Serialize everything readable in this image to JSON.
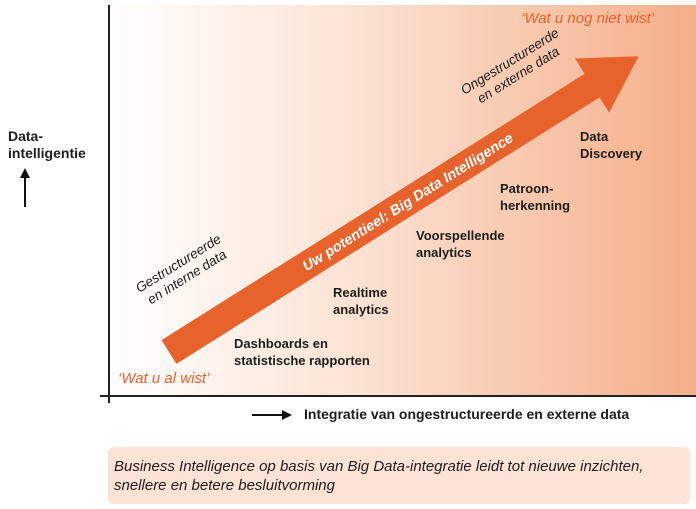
{
  "y_axis": {
    "label_line1": "Data-",
    "label_line2": "intelligentie",
    "arrow_icon": "arrow-up"
  },
  "x_axis": {
    "label": "Integratie van ongestructureerde en externe data",
    "arrow_icon": "arrow-right"
  },
  "corner_labels": {
    "bottom_left": "‘Wat u al wist’",
    "top_right": "‘Wat u nog niet wist’"
  },
  "arrow": {
    "label": "Uw potentieel: Big Data Intelligence",
    "color": "#e8622c"
  },
  "data_type_labels": {
    "start": {
      "line1": "Gestructureerde",
      "line2": "en interne data"
    },
    "end": {
      "line1": "Ongestructureerde",
      "line2": "en externe data"
    }
  },
  "stages": [
    {
      "line1": "Dashboards en",
      "line2": "statistische rapporten"
    },
    {
      "line1": "Realtime",
      "line2": "analytics"
    },
    {
      "line1": "Voorspellende",
      "line2": "analytics"
    },
    {
      "line1": "Patroon-",
      "line2": "herkenning"
    },
    {
      "line1": "Data",
      "line2": "Discovery"
    }
  ],
  "caption": {
    "line1": "Business Intelligence op basis van Big Data-integratie leidt tot nieuwe inzichten,",
    "line2": "snellere en betere besluitvorming"
  },
  "colors": {
    "accent": "#e8622c",
    "gradient_end": "#f4ae88",
    "caption_bg": "#fce3d6"
  }
}
